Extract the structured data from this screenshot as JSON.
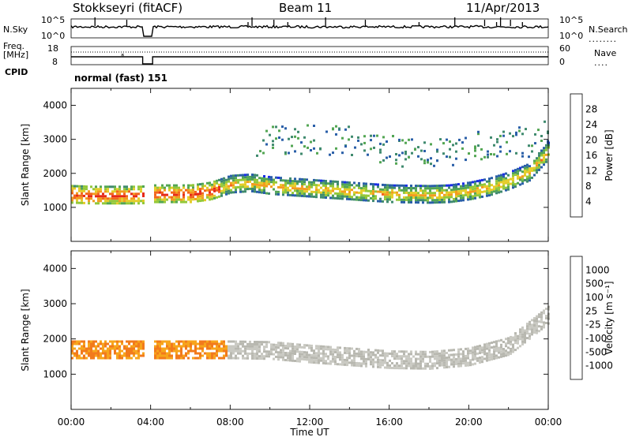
{
  "header": {
    "station": "Stokkseyri (fitACF)",
    "beam": "Beam 11",
    "date": "11/Apr/2013"
  },
  "strips": {
    "nsky_label": "N.Sky",
    "nsky_ticks": [
      "10^5",
      "10^0"
    ],
    "nsearch_label": "N.Search",
    "nsearch_ticks": [
      "10^5",
      "10^0"
    ],
    "freq_label_line1": "Freq.",
    "freq_label_line2": "[MHz]",
    "freq_ticks": [
      "18",
      "8"
    ],
    "nave_label": "Nave",
    "nave_ticks": [
      "60",
      "0"
    ],
    "cpid_label": "CPID",
    "cpid_value": "normal (fast) 151"
  },
  "chart_data": [
    {
      "type": "heatmap",
      "name": "power",
      "xlabel": "",
      "ylabel": "Slant Range [km]",
      "xlim": [
        0,
        24
      ],
      "ylim": [
        0,
        4500
      ],
      "ytick_labels": [
        "1000",
        "2000",
        "3000",
        "4000"
      ],
      "colorbar": {
        "label": "Power [dB]",
        "range": [
          0,
          32
        ],
        "tick_labels": [
          "4",
          "8",
          "12",
          "16",
          "20",
          "24",
          "28"
        ],
        "colors": [
          "#1a2ee6",
          "#2a5fa8",
          "#3f8a6e",
          "#53a653",
          "#93c83a",
          "#e4cc28",
          "#f39c1e",
          "#f2661d",
          "#e62a1a"
        ]
      },
      "features": [
        {
          "label": "F-region band",
          "t": [
            0,
            1,
            2,
            3,
            3.5,
            4,
            5,
            6,
            7,
            8,
            9,
            10,
            12,
            14,
            16,
            18,
            19,
            20,
            21,
            22,
            23,
            24
          ],
          "range_km": [
            1400,
            1380,
            1380,
            1380,
            1380,
            1420,
            1420,
            1420,
            1500,
            1700,
            1740,
            1660,
            1580,
            1500,
            1420,
            1400,
            1420,
            1500,
            1620,
            1800,
            2050,
            2700
          ]
        },
        {
          "label": "upper echo region",
          "t": [
            7.5,
            8.5,
            10,
            12,
            14,
            16,
            18,
            20,
            21,
            22,
            23.2,
            24
          ],
          "range_km": [
            3100,
            2950,
            3050,
            3050,
            2950,
            2700,
            2600,
            2750,
            2950,
            3050,
            2900,
            3200
          ]
        }
      ]
    },
    {
      "type": "heatmap",
      "name": "velocity",
      "xlabel": "Time UT",
      "ylabel": "Slant Range [km]",
      "xlim": [
        0,
        24
      ],
      "ylim": [
        0,
        4500
      ],
      "xtick_labels": [
        "00:00",
        "04:00",
        "08:00",
        "12:00",
        "16:00",
        "20:00",
        "00:00"
      ],
      "ytick_labels": [
        "1000",
        "2000",
        "3000",
        "4000"
      ],
      "colorbar": {
        "label": "Velocity [m s⁻¹]",
        "tick_labels": [
          "1000",
          "500",
          "100",
          "25",
          "-25",
          "-100",
          "-500",
          "-1000"
        ],
        "colors": [
          "#2847b3",
          "#2e6b8c",
          "#3f9a55",
          "#6ec43f",
          "#b8b8b0",
          "#c9c9c2",
          "#f7a51c",
          "#f27a1c",
          "#e8301c"
        ]
      },
      "features": [
        {
          "label": "ground scatter band (near 0 m/s)",
          "t": [
            8,
            10,
            12,
            14,
            16,
            18,
            20,
            22,
            24
          ],
          "range_km": [
            1700,
            1680,
            1580,
            1500,
            1420,
            1400,
            1500,
            1800,
            2700
          ]
        }
      ]
    }
  ]
}
